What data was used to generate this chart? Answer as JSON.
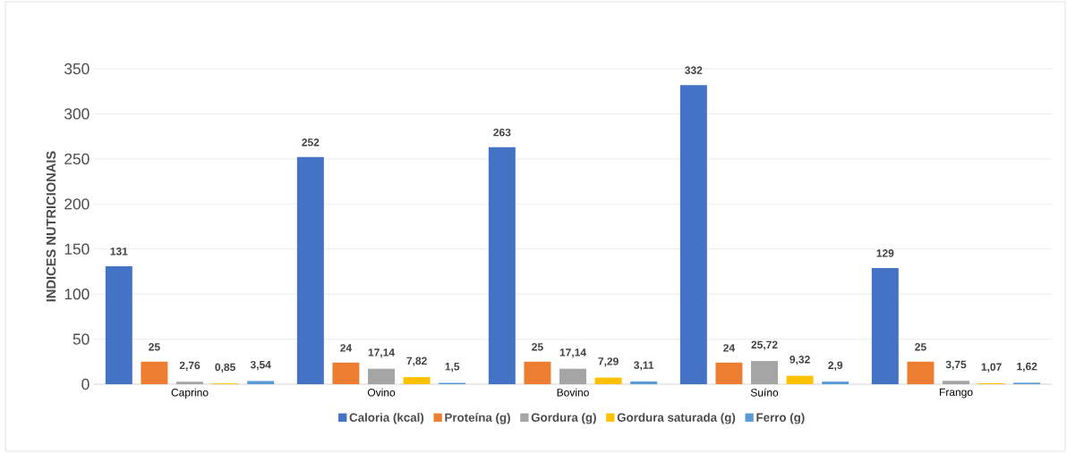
{
  "chart_data": {
    "type": "bar",
    "ylabel": "INDICES NUTRICIONAIS",
    "categories": [
      "Caprino",
      "Ovino",
      "Bovino",
      "Suíno",
      "Frango"
    ],
    "series": [
      {
        "name": "Caloria (kcal)",
        "color": "#4472c4",
        "values": [
          131,
          252,
          263,
          332,
          129
        ],
        "value_labels": [
          "131",
          "252",
          "263",
          "332",
          "129"
        ]
      },
      {
        "name": "Proteína (g)",
        "color": "#ed7d31",
        "values": [
          25,
          24,
          25,
          24,
          25
        ],
        "value_labels": [
          "25",
          "24",
          "25",
          "24",
          "25"
        ]
      },
      {
        "name": "Gordura (g)",
        "color": "#a5a5a5",
        "values": [
          2.76,
          17.14,
          17.14,
          25.72,
          3.75
        ],
        "value_labels": [
          "2,76",
          "17,14",
          "17,14",
          "25,72",
          "3,75"
        ]
      },
      {
        "name": "Gordura saturada (g)",
        "color": "#ffc000",
        "values": [
          0.85,
          7.82,
          7.29,
          9.32,
          1.07
        ],
        "value_labels": [
          "0,85",
          "7,82",
          "7,29",
          "9,32",
          "1,07"
        ]
      },
      {
        "name": "Ferro (g)",
        "color": "#5b9bd5",
        "values": [
          3.54,
          1.5,
          3.11,
          2.9,
          1.62
        ],
        "value_labels": [
          "3,54",
          "1,5",
          "3,11",
          "2,9",
          "1,62"
        ]
      }
    ],
    "ylim": [
      0,
      350
    ],
    "yticks": [
      0,
      50,
      100,
      150,
      200,
      250,
      300,
      350
    ],
    "grid": "y",
    "legend": "bottom"
  }
}
